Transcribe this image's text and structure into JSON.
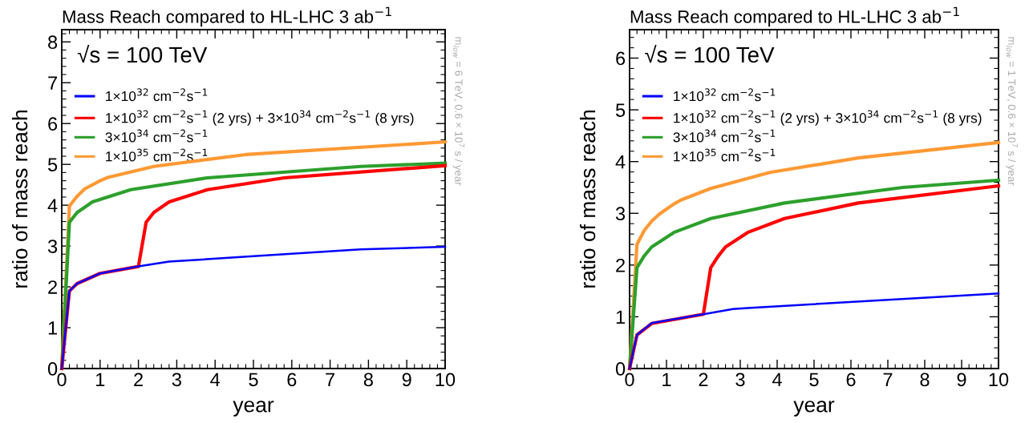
{
  "chart_data": [
    {
      "type": "line",
      "title": "Mass Reach compared to HL-LHC 3 ab$^{−1}$",
      "xlabel": "year",
      "ylabel": "ratio of mass reach",
      "annotations": [
        "√s = 100 TeV",
        "m$_{low}$ = 6 TeV, 0.6 × 10$^{7}$ s / year"
      ],
      "xlim": [
        0,
        10
      ],
      "ylim": [
        0,
        8.3
      ],
      "xticks": [
        0,
        1,
        2,
        3,
        4,
        5,
        6,
        7,
        8,
        9,
        10
      ],
      "yticks": [
        0,
        1,
        2,
        3,
        4,
        5,
        6,
        7,
        8
      ],
      "legend": "top left",
      "grid": false,
      "marker": "none",
      "line_style": "solid",
      "series": [
        {
          "name": "1×10$^{32}$ cm$^{−2}$s$^{−1}$",
          "color": "#0000ff",
          "x": [
            0,
            0.2,
            0.4,
            1,
            2,
            2.8,
            5,
            7.8,
            10
          ],
          "values": [
            0,
            1.9,
            2.08,
            2.33,
            2.5,
            2.62,
            2.75,
            2.92,
            2.98
          ]
        },
        {
          "name": "1×10$^{32}$ cm$^{−2}$s$^{−1}$ (2 yrs) + 3×10$^{34}$ cm$^{−2}$s$^{−1}$ (8 yrs)",
          "color": "#ff0000",
          "x": [
            0,
            0.2,
            0.4,
            1,
            2,
            2.2,
            2.4,
            2.8,
            3.8,
            5.8,
            10
          ],
          "values": [
            0,
            1.9,
            2.08,
            2.33,
            2.5,
            3.58,
            3.82,
            4.08,
            4.38,
            4.67,
            4.97
          ]
        },
        {
          "name": "3×10$^{34}$ cm$^{−2}$s$^{−1}$",
          "color": "#2ca02c",
          "x": [
            0,
            0.2,
            0.4,
            0.8,
            1.8,
            3.8,
            7.8,
            10
          ],
          "values": [
            0,
            3.58,
            3.82,
            4.08,
            4.38,
            4.67,
            4.95,
            5.03
          ]
        },
        {
          "name": "1×10$^{35}$ cm$^{−2}$s$^{−1}$",
          "color": "#ff9933",
          "x": [
            0,
            0.2,
            0.4,
            0.6,
            1,
            1.2,
            2.4,
            4.8,
            10
          ],
          "values": [
            0,
            3.98,
            4.22,
            4.4,
            4.6,
            4.68,
            4.95,
            5.24,
            5.55
          ]
        }
      ]
    },
    {
      "type": "line",
      "title": "Mass Reach compared to HL-LHC 3 ab$^{−1}$",
      "xlabel": "year",
      "ylabel": "ratio of mass reach",
      "annotations": [
        "√s = 100 TeV",
        "m$_{low}$ = 1 TeV, 0.6 × 10$^{7}$ s / year"
      ],
      "xlim": [
        0,
        10
      ],
      "ylim": [
        0,
        6.55
      ],
      "xticks": [
        0,
        1,
        2,
        3,
        4,
        5,
        6,
        7,
        8,
        9,
        10
      ],
      "yticks": [
        0,
        1,
        2,
        3,
        4,
        5,
        6
      ],
      "legend": "top left",
      "grid": false,
      "marker": "none",
      "line_style": "solid",
      "series": [
        {
          "name": "1×10$^{32}$ cm$^{−2}$s$^{−1}$",
          "color": "#0000ff",
          "x": [
            0,
            0.2,
            0.6,
            2,
            2.8,
            3.2,
            10
          ],
          "values": [
            0,
            0.65,
            0.88,
            1.05,
            1.15,
            1.17,
            1.45
          ]
        },
        {
          "name": "1×10$^{32}$ cm$^{−2}$s$^{−1}$ (2 yrs) + 3×10$^{34}$ cm$^{−2}$s$^{−1}$ (8 yrs)",
          "color": "#ff0000",
          "x": [
            0,
            0.2,
            0.6,
            2,
            2.2,
            2.4,
            2.6,
            3.2,
            4.2,
            6.2,
            10
          ],
          "values": [
            0,
            0.65,
            0.87,
            1.05,
            1.95,
            2.17,
            2.35,
            2.63,
            2.9,
            3.2,
            3.53
          ]
        },
        {
          "name": "3×10$^{34}$ cm$^{−2}$s$^{−1}$",
          "color": "#2ca02c",
          "x": [
            0,
            0.2,
            0.4,
            0.6,
            1.2,
            2.2,
            4.2,
            7.4,
            10
          ],
          "values": [
            0,
            1.95,
            2.18,
            2.35,
            2.63,
            2.9,
            3.2,
            3.5,
            3.64
          ]
        },
        {
          "name": "1×10$^{35}$ cm$^{−2}$s$^{−1}$",
          "color": "#ff9933",
          "x": [
            0,
            0.2,
            0.4,
            0.6,
            0.8,
            1.2,
            1.4,
            2.2,
            3.8,
            6.2,
            10
          ],
          "values": [
            0,
            2.4,
            2.67,
            2.85,
            2.98,
            3.18,
            3.26,
            3.48,
            3.79,
            4.07,
            4.37
          ]
        }
      ]
    }
  ]
}
